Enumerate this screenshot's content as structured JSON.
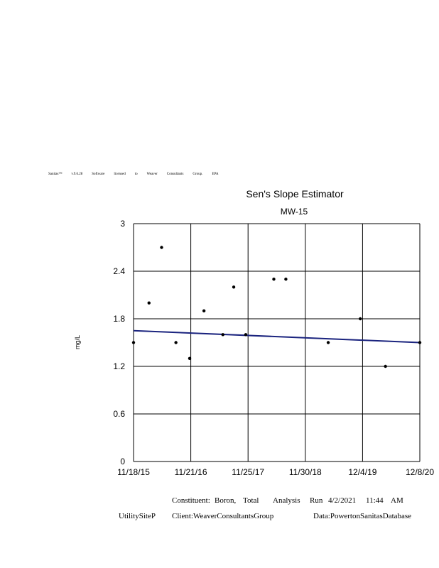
{
  "watermark": [
    "Sanitas™",
    "v.9.6.28",
    "Software",
    "licensed",
    "to",
    "Weaver",
    "Consultants",
    "Group.",
    "EPA"
  ],
  "footer": {
    "line1": [
      "Constituent:",
      "Boron,",
      "Total",
      "Analysis",
      "Run",
      "4/2/2021",
      "11:44",
      "AM"
    ],
    "site": "UtilitySiteP",
    "client": "Client:WeaverConsultantsGroup",
    "data": "Data:PowertonSanitasDatabase"
  },
  "colors": {
    "trend": "#1a237e",
    "points": "#000000",
    "grid": "#000000"
  },
  "chart_data": {
    "type": "scatter",
    "title": "Sen's Slope Estimator",
    "subtitle": "MW-15",
    "ylabel": "mg/L",
    "ylim": [
      0,
      3
    ],
    "yticks": [
      "0",
      "0.6",
      "1.2",
      "1.8",
      "2.4",
      "3"
    ],
    "xticks": [
      "11/18/15",
      "11/21/16",
      "11/25/17",
      "11/30/18",
      "12/4/19",
      "12/8/20"
    ],
    "xrange_years": [
      0,
      5
    ],
    "grid": true,
    "points": [
      {
        "x": 0.0,
        "y": 1.5
      },
      {
        "x": 0.27,
        "y": 2.0
      },
      {
        "x": 0.49,
        "y": 2.7
      },
      {
        "x": 0.74,
        "y": 1.5
      },
      {
        "x": 0.98,
        "y": 1.3
      },
      {
        "x": 1.23,
        "y": 1.9
      },
      {
        "x": 1.56,
        "y": 1.6
      },
      {
        "x": 1.75,
        "y": 2.2
      },
      {
        "x": 1.96,
        "y": 1.6
      },
      {
        "x": 2.45,
        "y": 2.3
      },
      {
        "x": 2.66,
        "y": 2.3
      },
      {
        "x": 3.4,
        "y": 1.5
      },
      {
        "x": 3.96,
        "y": 1.8
      },
      {
        "x": 4.4,
        "y": 1.2
      },
      {
        "x": 5.0,
        "y": 1.5
      }
    ],
    "trend": {
      "y_start": 1.65,
      "y_end": 1.5
    }
  }
}
